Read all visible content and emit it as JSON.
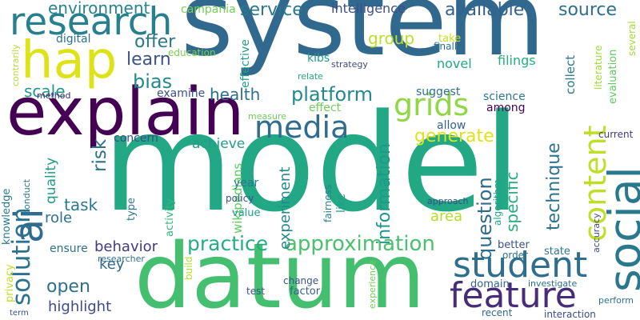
{
  "wordcloud": {
    "words": [
      {
        "text": "system",
        "color": "#31688e"
      },
      {
        "text": "model",
        "color": "#22a884"
      },
      {
        "text": "datum",
        "color": "#44bf70"
      },
      {
        "text": "explain",
        "color": "#440154"
      },
      {
        "text": "hap",
        "color": "#dde318"
      },
      {
        "text": "research",
        "color": "#27808e"
      },
      {
        "text": "social",
        "color": "#2a788e"
      },
      {
        "text": "ai",
        "color": "#2f6b8e"
      },
      {
        "text": "student",
        "color": "#2e6e8e"
      },
      {
        "text": "media",
        "color": "#2f6c8e"
      },
      {
        "text": "content",
        "color": "#bddf26"
      },
      {
        "text": "feature",
        "color": "#472c7a"
      },
      {
        "text": "grids",
        "color": "#8fd744"
      },
      {
        "text": "solution",
        "color": "#2c728e"
      },
      {
        "text": "approximation",
        "color": "#4ac16d"
      },
      {
        "text": "practice",
        "color": "#25ac82"
      },
      {
        "text": "information",
        "color": "#1f988b"
      },
      {
        "text": "question",
        "color": "#2f6b8e"
      },
      {
        "text": "platform",
        "color": "#23898e"
      },
      {
        "text": "generate",
        "color": "#dde318"
      },
      {
        "text": "risk",
        "color": "#2c728e"
      },
      {
        "text": "open",
        "color": "#2d708e"
      },
      {
        "text": "technique",
        "color": "#2c738e"
      },
      {
        "text": "environment",
        "color": "#25858e"
      },
      {
        "text": "service",
        "color": "#2a788e"
      },
      {
        "text": "available",
        "color": "#34618d"
      },
      {
        "text": "source",
        "color": "#2d708e"
      },
      {
        "text": "intelligence",
        "color": "#3d4e8a"
      },
      {
        "text": "campania",
        "color": "#75d054"
      },
      {
        "text": "offer",
        "color": "#2a768e"
      },
      {
        "text": "learn",
        "color": "#3b528b"
      },
      {
        "text": "bias",
        "color": "#23898e"
      },
      {
        "text": "scale",
        "color": "#1f988b"
      },
      {
        "text": "health",
        "color": "#2d708e"
      },
      {
        "text": "group",
        "color": "#bddf26"
      },
      {
        "text": "specific",
        "color": "#27ad81"
      },
      {
        "text": "experiment",
        "color": "#23898e"
      },
      {
        "text": "task",
        "color": "#2a788e"
      },
      {
        "text": "highlight",
        "color": "#3e4a89"
      },
      {
        "text": "behavior",
        "color": "#443983"
      },
      {
        "text": "achieve",
        "color": "#1f9e89"
      },
      {
        "text": "area",
        "color": "#b5de2b"
      },
      {
        "text": "role",
        "color": "#2d708e"
      },
      {
        "text": "key",
        "color": "#31688e"
      },
      {
        "text": "quality",
        "color": "#1f998a"
      },
      {
        "text": "wikipedians",
        "color": "#5ec962"
      },
      {
        "text": "digital",
        "color": "#2c728e"
      },
      {
        "text": "education",
        "color": "#7ad151"
      },
      {
        "text": "effective",
        "color": "#1fa188"
      },
      {
        "text": "examine",
        "color": "#3b528b"
      },
      {
        "text": "suggest",
        "color": "#2c728e"
      },
      {
        "text": "science",
        "color": "#2a788e"
      },
      {
        "text": "among",
        "color": "#440154"
      },
      {
        "text": "allow",
        "color": "#34618d"
      },
      {
        "text": "concern",
        "color": "#3e4a89"
      },
      {
        "text": "kibs",
        "color": "#1f9e89"
      },
      {
        "text": "strategy",
        "color": "#3e4a89"
      },
      {
        "text": "relate",
        "color": "#22a884"
      },
      {
        "text": "effect",
        "color": "#6ece58"
      },
      {
        "text": "novel",
        "color": "#22a884"
      },
      {
        "text": "filings",
        "color": "#27ad81"
      },
      {
        "text": "take",
        "color": "#c8e020"
      },
      {
        "text": "finally",
        "color": "#2c728e"
      },
      {
        "text": "collect",
        "color": "#2a788e"
      },
      {
        "text": "literature",
        "color": "#a0da39"
      },
      {
        "text": "several",
        "color": "#a2da37"
      },
      {
        "text": "evaluation",
        "color": "#5ec962"
      },
      {
        "text": "accuracy",
        "color": "#3e4a89"
      },
      {
        "text": "current",
        "color": "#443983"
      },
      {
        "text": "contrarily",
        "color": "#b5de2b"
      },
      {
        "text": "method",
        "color": "#482878"
      },
      {
        "text": "measure",
        "color": "#6ece58"
      },
      {
        "text": "knowledge",
        "color": "#2a788e"
      },
      {
        "text": "privacy",
        "color": "#bddf26"
      },
      {
        "text": "conduct",
        "color": "#2a788e"
      },
      {
        "text": "year",
        "color": "#2a788e"
      },
      {
        "text": "policy",
        "color": "#3b528b"
      },
      {
        "text": "value",
        "color": "#1f9e89"
      },
      {
        "text": "type",
        "color": "#2a788e"
      },
      {
        "text": "activity",
        "color": "#35b779"
      },
      {
        "text": "fairness",
        "color": "#27808e"
      },
      {
        "text": "like",
        "color": "#1f9e89"
      },
      {
        "text": "algorithm",
        "color": "#1fa188"
      },
      {
        "text": "approach",
        "color": "#3e4a89"
      },
      {
        "text": "ensure",
        "color": "#2d708e"
      },
      {
        "text": "researcher",
        "color": "#2d708e"
      },
      {
        "text": "build",
        "color": "#b5de2b"
      },
      {
        "text": "test",
        "color": "#3b528b"
      },
      {
        "text": "change",
        "color": "#3b528b"
      },
      {
        "text": "factor",
        "color": "#34618d"
      },
      {
        "text": "experience",
        "color": "#75d054"
      },
      {
        "text": "domain",
        "color": "#34618d"
      },
      {
        "text": "investigate",
        "color": "#2d708e"
      },
      {
        "text": "better",
        "color": "#3b528b"
      },
      {
        "text": "order",
        "color": "#2d708e"
      },
      {
        "text": "state",
        "color": "#2a788e"
      },
      {
        "text": "perform",
        "color": "#2c728e"
      },
      {
        "text": "recent",
        "color": "#31688e"
      },
      {
        "text": "interaction",
        "color": "#3e4a89"
      },
      {
        "text": "term",
        "color": "#3b528b"
      }
    ]
  }
}
